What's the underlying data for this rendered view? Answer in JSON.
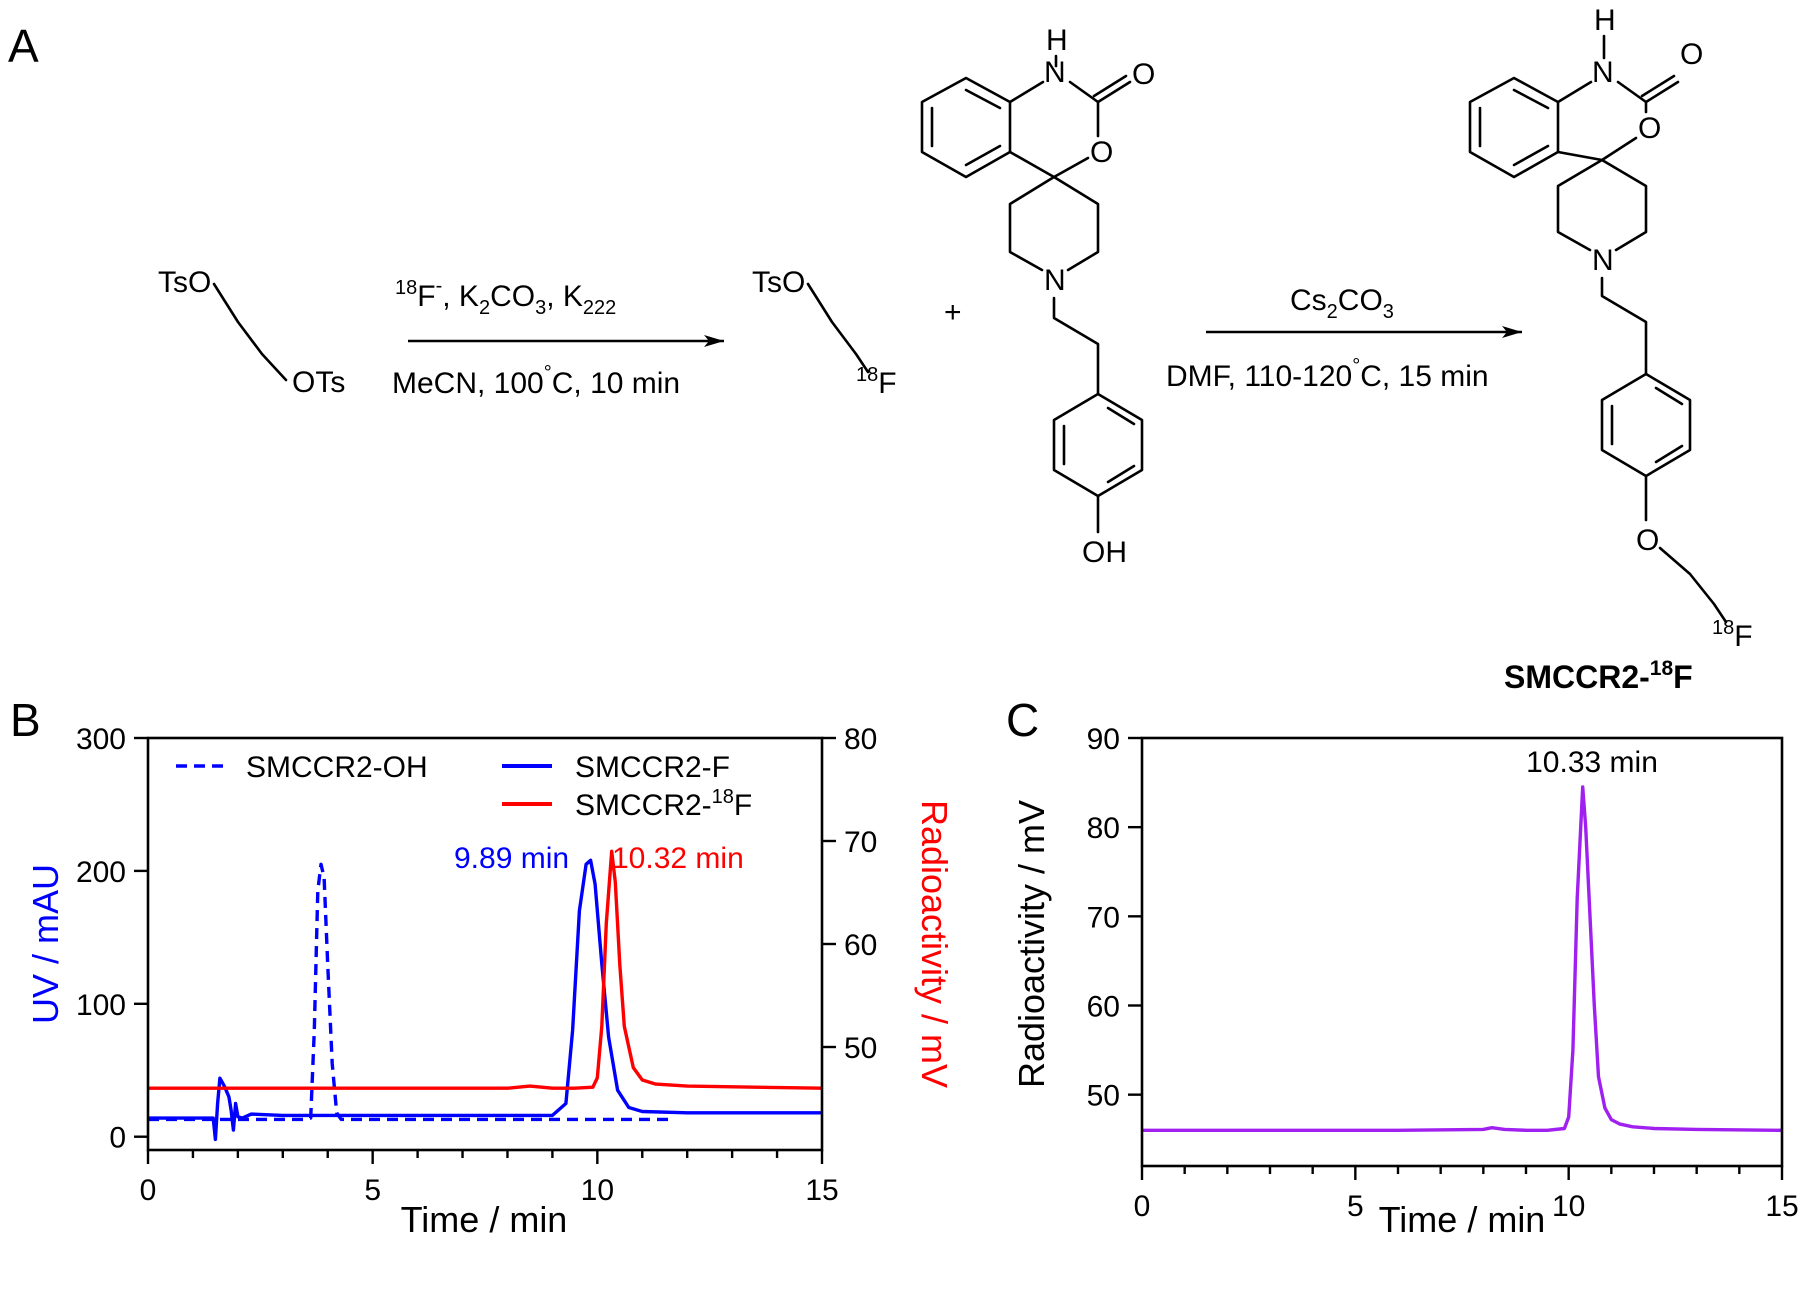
{
  "panels": {
    "a": "A",
    "b": "B",
    "c": "C"
  },
  "scheme": {
    "reactant": {
      "tso": "TsO",
      "ots": "OTs"
    },
    "step1": {
      "reagents": {
        "f_sup": "18",
        "f": "F",
        "f_charge": "-",
        "sep1": ", K",
        "k2co3_sub": "2",
        "co3": "CO",
        "co3_sub": "3",
        "sep2": ", K",
        "k222_sub": "222"
      },
      "conditions": {
        "solvent": "MeCN, 100",
        "deg": "°",
        "rest": "C, 10 min"
      }
    },
    "intermediate": {
      "tso": "TsO",
      "f_sup": "18",
      "f": "F"
    },
    "plus": "+",
    "precursor": {
      "nh": "H",
      "n": "N",
      "o_carbonyl": "O",
      "o_ring": "O",
      "n_pip": "N",
      "oh": "OH"
    },
    "step2": {
      "reagent": {
        "cs": "Cs",
        "cs_sub": "2",
        "co": "CO",
        "co_sub": "3"
      },
      "conditions": {
        "text": "DMF, 110-120",
        "deg": "°",
        "rest": "C, 15 min"
      }
    },
    "product": {
      "nh": "H",
      "n": "N",
      "o_carbonyl": "O",
      "o_ring": "O",
      "n_pip": "N",
      "o_ether": "O",
      "f_sup": "18",
      "f": "F",
      "name_pre": "SMCCR2-",
      "name_sup": "18",
      "name_post": "F"
    }
  },
  "chart_data": [
    {
      "panel": "B",
      "type": "line",
      "xlabel": "Time / min",
      "ylabel": "UV / mAU",
      "y2label": "Radioactivity / mV",
      "xlim": [
        0,
        15
      ],
      "ylim": [
        -10,
        300
      ],
      "y2lim": [
        40,
        80
      ],
      "xticks": [
        0,
        5,
        10,
        15
      ],
      "yticks": [
        0,
        100,
        200,
        300
      ],
      "y2ticks": [
        50,
        60,
        70,
        80
      ],
      "grid": false,
      "legend": "top",
      "legend_entries": {
        "oh": "SMCCR2-OH",
        "f": "SMCCR2-F",
        "f18_pre": "SMCCR2-",
        "f18_sup": "18",
        "f18_post": "F"
      },
      "annotations": [
        {
          "text": "9.89 min",
          "x": 9.89,
          "y": 215,
          "color": "#0000ff"
        },
        {
          "text": "10.32 min",
          "x": 10.32,
          "y": 215,
          "color": "#ff0000"
        }
      ],
      "series": [
        {
          "name": "SMCCR2-OH",
          "axis": "left",
          "style": "dashed",
          "color": "#0000ff",
          "x": [
            0,
            3.5,
            3.62,
            3.7,
            3.78,
            3.85,
            3.92,
            4.0,
            4.1,
            4.2,
            4.3,
            5,
            8,
            11.6
          ],
          "y": [
            13,
            13,
            14,
            80,
            185,
            205,
            195,
            130,
            55,
            18,
            13,
            13,
            13,
            13
          ]
        },
        {
          "name": "SMCCR2-F",
          "axis": "left",
          "style": "solid",
          "color": "#0000ff",
          "x": [
            0,
            1.45,
            1.5,
            1.55,
            1.6,
            1.7,
            1.8,
            1.85,
            1.9,
            1.95,
            2.0,
            2.1,
            2.3,
            3,
            5,
            8,
            9.0,
            9.3,
            9.45,
            9.6,
            9.75,
            9.85,
            9.95,
            10.1,
            10.25,
            10.45,
            10.7,
            11.0,
            12,
            15
          ],
          "y": [
            14,
            14,
            -2,
            25,
            44,
            38,
            30,
            20,
            5,
            25,
            15,
            14,
            17,
            16,
            16,
            16,
            16,
            25,
            80,
            170,
            205,
            208,
            190,
            130,
            75,
            35,
            22,
            19,
            18,
            18
          ]
        },
        {
          "name": "SMCCR2-18F",
          "axis": "right",
          "style": "solid",
          "color": "#ff0000",
          "x": [
            0,
            2,
            4,
            6,
            8,
            8.5,
            9,
            9.5,
            9.9,
            10.0,
            10.1,
            10.2,
            10.32,
            10.4,
            10.5,
            10.6,
            10.8,
            11.0,
            11.3,
            12,
            15
          ],
          "y": [
            46,
            46,
            46,
            46,
            46,
            46.2,
            46,
            46,
            46.1,
            47,
            52,
            62,
            69,
            66,
            58,
            52,
            48,
            46.8,
            46.4,
            46.2,
            46
          ]
        }
      ]
    },
    {
      "panel": "C",
      "type": "line",
      "xlabel": "Time / min",
      "ylabel": "Radioactivity / mV",
      "xlim": [
        0,
        15
      ],
      "ylim": [
        42,
        90
      ],
      "xticks": [
        0,
        5,
        10,
        15
      ],
      "yticks": [
        50,
        60,
        70,
        80,
        90
      ],
      "grid": false,
      "annotations": [
        {
          "text": "10.33 min",
          "x": 10.33,
          "y": 86.5,
          "color": "#000000"
        }
      ],
      "series": [
        {
          "name": "",
          "color": "#a020f0",
          "x": [
            0,
            2,
            4,
            6,
            8,
            8.2,
            8.5,
            9,
            9.5,
            9.9,
            10.0,
            10.1,
            10.2,
            10.33,
            10.4,
            10.5,
            10.6,
            10.7,
            10.85,
            11.0,
            11.2,
            11.5,
            12,
            13,
            15
          ],
          "y": [
            46,
            46,
            46,
            46,
            46.1,
            46.3,
            46.1,
            46,
            46,
            46.2,
            47.5,
            55,
            72,
            84.5,
            80,
            70,
            60,
            52,
            48.5,
            47.2,
            46.7,
            46.4,
            46.2,
            46.1,
            46
          ]
        }
      ]
    }
  ]
}
